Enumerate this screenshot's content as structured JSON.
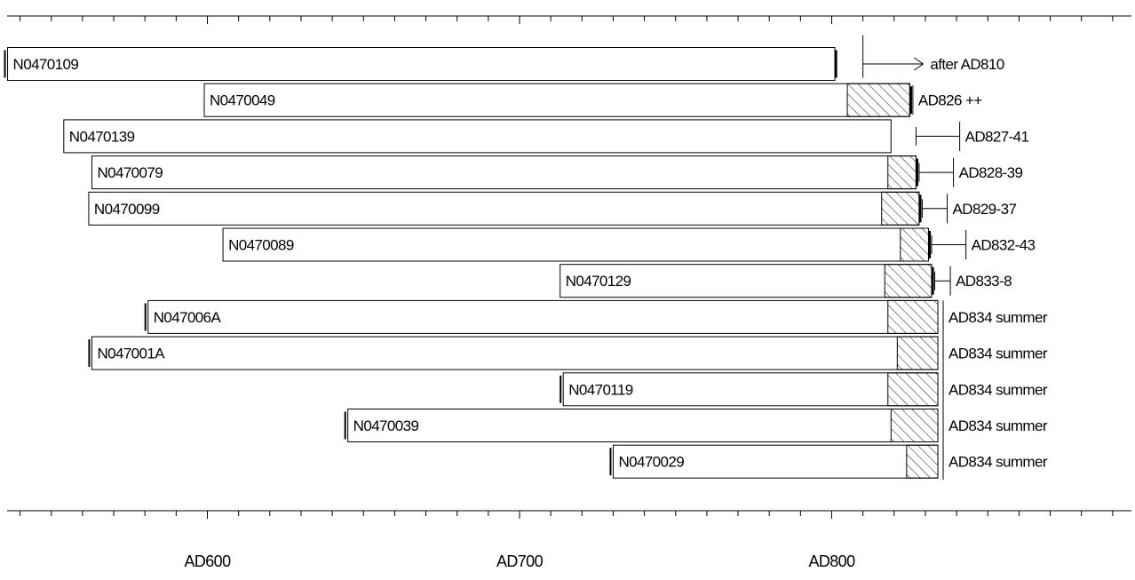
{
  "chart_data": {
    "type": "bar",
    "subtype": "dendrochronology-bar-diagram",
    "x_axis": {
      "tick_labels": [
        "AD600",
        "AD700",
        "AD800"
      ],
      "major_ticks": [
        600,
        700,
        800
      ],
      "minor_tick_step": 10,
      "xlim": [
        535,
        895
      ]
    },
    "samples": [
      {
        "name": "N0470109",
        "start": 536,
        "end": 801,
        "sapwood_start": null,
        "pith_marker": true,
        "endmarker": true,
        "interpretation": {
          "type": "arrow",
          "from": 810,
          "to": 827
        },
        "label": "after AD810"
      },
      {
        "name": "N0470049",
        "start": 599,
        "end": 825,
        "sapwood_start": 805,
        "pith_marker": false,
        "endmarker": true,
        "interpretation": {
          "type": "range",
          "from": 826,
          "to": 826
        },
        "label": "AD826 ++"
      },
      {
        "name": "N0470139",
        "start": 554,
        "end": 819,
        "sapwood_start": null,
        "pith_marker": false,
        "endmarker": false,
        "interpretation": {
          "type": "range",
          "from": 827,
          "to": 841
        },
        "label": "AD827-41"
      },
      {
        "name": "N0470079",
        "start": 563,
        "end": 827,
        "sapwood_start": 818,
        "pith_marker": false,
        "endmarker": true,
        "interpretation": {
          "type": "range",
          "from": 828,
          "to": 839
        },
        "label": "AD828-39"
      },
      {
        "name": "N0470099",
        "start": 562,
        "end": 828,
        "sapwood_start": 816,
        "pith_marker": false,
        "endmarker": true,
        "interpretation": {
          "type": "range",
          "from": 829,
          "to": 837
        },
        "label": "AD829-37"
      },
      {
        "name": "N0470089",
        "start": 605,
        "end": 831,
        "sapwood_start": 822,
        "pith_marker": false,
        "endmarker": true,
        "interpretation": {
          "type": "range",
          "from": 832,
          "to": 843
        },
        "label": "AD832-43"
      },
      {
        "name": "N0470129",
        "start": 713,
        "end": 832,
        "sapwood_start": 817,
        "pith_marker": false,
        "endmarker": true,
        "interpretation": {
          "type": "range",
          "from": 833,
          "to": 838
        },
        "label": "AD833-8"
      },
      {
        "name": "N047006A",
        "start": 581,
        "end": 834,
        "sapwood_start": 818,
        "pith_marker": true,
        "endmarker": false,
        "interpretation": {
          "type": "felling",
          "from": 834,
          "to": 834
        },
        "label": "AD834 summer"
      },
      {
        "name": "N047001A",
        "start": 563,
        "end": 834,
        "sapwood_start": 821,
        "pith_marker": true,
        "endmarker": false,
        "interpretation": {
          "type": "felling",
          "from": 834,
          "to": 834
        },
        "label": "AD834 summer"
      },
      {
        "name": "N0470119",
        "start": 714,
        "end": 834,
        "sapwood_start": 818,
        "pith_marker": true,
        "endmarker": false,
        "interpretation": {
          "type": "felling",
          "from": 834,
          "to": 834
        },
        "label": "AD834 summer"
      },
      {
        "name": "N0470039",
        "start": 645,
        "end": 834,
        "sapwood_start": 819,
        "pith_marker": true,
        "endmarker": false,
        "interpretation": {
          "type": "felling",
          "from": 834,
          "to": 834
        },
        "label": "AD834 summer"
      },
      {
        "name": "N0470029",
        "start": 730,
        "end": 834,
        "sapwood_start": 824,
        "pith_marker": true,
        "endmarker": false,
        "interpretation": {
          "type": "felling",
          "from": 834,
          "to": 834
        },
        "label": "AD834 summer"
      }
    ],
    "title": "",
    "xlabel": "",
    "ylabel": "",
    "grid": false,
    "legend": "none"
  }
}
